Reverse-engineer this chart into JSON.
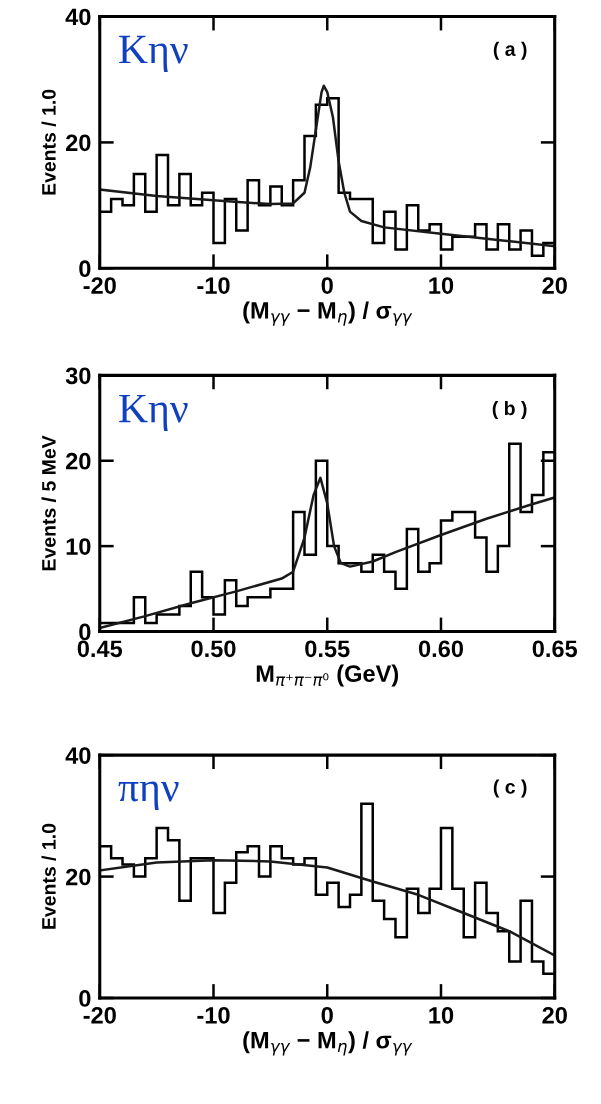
{
  "chart_data": [
    {
      "type": "histogram",
      "xlabel": "(M$_{γγ}$ − M$_{η}$) / σ$_{γγ}$",
      "ylabel": "Events / 1.0",
      "annotations": [
        "Kην",
        "( a )"
      ],
      "bins": [
        -20,
        -19,
        -18,
        -17,
        -16,
        -15,
        -14,
        -13,
        -12,
        -11,
        -10,
        -9,
        -8,
        -7,
        -6,
        -5,
        -4,
        -3,
        -2,
        -1,
        0,
        1,
        2,
        3,
        4,
        5,
        6,
        7,
        8,
        9,
        10,
        11,
        12,
        13,
        14,
        15,
        16,
        17,
        18,
        19,
        20
      ],
      "series": [
        {
          "color": "#000000",
          "values": [
            9,
            11,
            10,
            15,
            9,
            18,
            10,
            15,
            10,
            12,
            4,
            11,
            6,
            14,
            10,
            13,
            10,
            14,
            21,
            26,
            27,
            12,
            11,
            11,
            4,
            9,
            3,
            10,
            6,
            7,
            3,
            5,
            5,
            7,
            3,
            7,
            3,
            6,
            2,
            4
          ]
        },
        {
          "type": "line",
          "color": "#1a1a1a",
          "x": [
            -20,
            -15,
            -10,
            -5,
            -3,
            -2,
            -1.5,
            -1,
            -0.5,
            -0.3,
            0,
            0.5,
            1,
            1.5,
            2,
            3,
            5,
            10,
            15,
            20
          ],
          "values": [
            12.5,
            11.5,
            10.8,
            10.2,
            10.3,
            12,
            16,
            22,
            28,
            29,
            28,
            24,
            17,
            12,
            9,
            7.5,
            6.5,
            5.5,
            4.5,
            3.5
          ]
        }
      ],
      "xlim": [
        -20,
        20
      ],
      "xticks": [
        -20,
        -10,
        0,
        10,
        20
      ],
      "ylim": [
        0,
        40
      ],
      "yticks": [
        0,
        20,
        40
      ],
      "grid": false,
      "legend": false
    },
    {
      "type": "histogram",
      "xlabel": "M$_{π⁺π⁻π⁰}$ (GeV)",
      "ylabel": "Events / 5 MeV",
      "annotations": [
        "Kην",
        "( b )"
      ],
      "bins": [
        0.45,
        0.455,
        0.46,
        0.465,
        0.47,
        0.475,
        0.48,
        0.485,
        0.49,
        0.495,
        0.5,
        0.505,
        0.51,
        0.515,
        0.52,
        0.525,
        0.53,
        0.535,
        0.54,
        0.545,
        0.55,
        0.555,
        0.56,
        0.565,
        0.57,
        0.575,
        0.58,
        0.585,
        0.59,
        0.595,
        0.6,
        0.605,
        0.61,
        0.615,
        0.62,
        0.625,
        0.63,
        0.635,
        0.64,
        0.645,
        0.65
      ],
      "series": [
        {
          "color": "#000000",
          "values": [
            1,
            1,
            1,
            4,
            1,
            2,
            2,
            3,
            7,
            4,
            2,
            6,
            3,
            4,
            4,
            5,
            5,
            14,
            9,
            20,
            10,
            8,
            8,
            7,
            9,
            7,
            5,
            12,
            7,
            8,
            13,
            14,
            14,
            11,
            7,
            10,
            22,
            14,
            16,
            21
          ]
        },
        {
          "type": "line",
          "color": "#1a1a1a",
          "x": [
            0.45,
            0.47,
            0.49,
            0.51,
            0.53,
            0.535,
            0.54,
            0.544,
            0.547,
            0.55,
            0.553,
            0.556,
            0.56,
            0.57,
            0.58,
            0.6,
            0.62,
            0.64,
            0.65
          ],
          "values": [
            0.4,
            1.8,
            3.3,
            4.7,
            6.2,
            7,
            11,
            16,
            18,
            15,
            10,
            8,
            7.6,
            8.2,
            9.3,
            11.3,
            13.2,
            14.9,
            15.7
          ]
        }
      ],
      "xlim": [
        0.45,
        0.65
      ],
      "xticks": [
        {
          "value": 0.45,
          "label": "0.45"
        },
        {
          "value": 0.5,
          "label": "0.50"
        },
        {
          "value": 0.55,
          "label": "0.55"
        },
        {
          "value": 0.6,
          "label": "0.60"
        },
        {
          "value": 0.65,
          "label": "0.65"
        }
      ],
      "ylim": [
        0,
        30
      ],
      "yticks": [
        0,
        10,
        20,
        30
      ],
      "grid": false,
      "legend": false
    },
    {
      "type": "histogram",
      "xlabel": "(M$_{γγ}$ − M$_{η}$) / σ$_{γγ}$",
      "ylabel": "Events / 1.0",
      "annotations": [
        "πην",
        "( c )"
      ],
      "bins": [
        -20,
        -19,
        -18,
        -17,
        -16,
        -15,
        -14,
        -13,
        -12,
        -11,
        -10,
        -9,
        -8,
        -7,
        -6,
        -5,
        -4,
        -3,
        -2,
        -1,
        0,
        1,
        2,
        3,
        4,
        5,
        6,
        7,
        8,
        9,
        10,
        11,
        12,
        13,
        14,
        15,
        16,
        17,
        18,
        19,
        20
      ],
      "series": [
        {
          "color": "#000000",
          "values": [
            25,
            23,
            22,
            20,
            23,
            28,
            26,
            16,
            23,
            23,
            14,
            19,
            24,
            25,
            20,
            25,
            23,
            22,
            23,
            17,
            19,
            15,
            17,
            32,
            16,
            13,
            10,
            18,
            14,
            18,
            28,
            18,
            10,
            19,
            14,
            11,
            6,
            16,
            6,
            4
          ]
        },
        {
          "type": "line",
          "color": "#1a1a1a",
          "x": [
            -20,
            -15,
            -10,
            -5,
            0,
            4,
            8,
            12,
            16,
            20
          ],
          "values": [
            21,
            22.3,
            22.7,
            22.5,
            21.5,
            19.2,
            17,
            14,
            11,
            7
          ]
        }
      ],
      "xlim": [
        -20,
        20
      ],
      "xticks": [
        -20,
        -10,
        0,
        10,
        20
      ],
      "ylim": [
        0,
        40
      ],
      "yticks": [
        0,
        20,
        40
      ],
      "grid": false,
      "legend": false
    }
  ]
}
